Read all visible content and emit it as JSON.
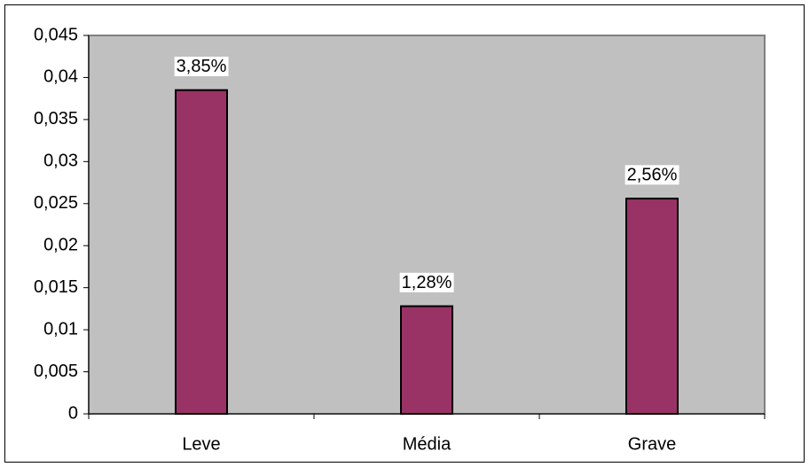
{
  "chart_data": {
    "type": "bar",
    "categories": [
      "Leve",
      "Média",
      "Grave"
    ],
    "values": [
      0.0385,
      0.0128,
      0.0256
    ],
    "value_labels": [
      "3,85%",
      "1,28%",
      "2,56%"
    ],
    "color": "#993366",
    "ylim": [
      0,
      0.045
    ],
    "yticks": [
      0,
      {
        "value": 0.005,
        "label": "0,005"
      },
      {
        "value": 0.01,
        "label": "0,01"
      },
      {
        "value": 0.015,
        "label": "0,015"
      },
      {
        "value": 0.02,
        "label": "0,02"
      },
      {
        "value": 0.025,
        "label": "0,025"
      },
      {
        "value": 0.03,
        "label": "0,03"
      },
      {
        "value": 0.035,
        "label": "0,035"
      },
      {
        "value": 0.04,
        "label": "0,04"
      },
      {
        "value": 0.045,
        "label": "0,045"
      }
    ],
    "grid": false
  }
}
